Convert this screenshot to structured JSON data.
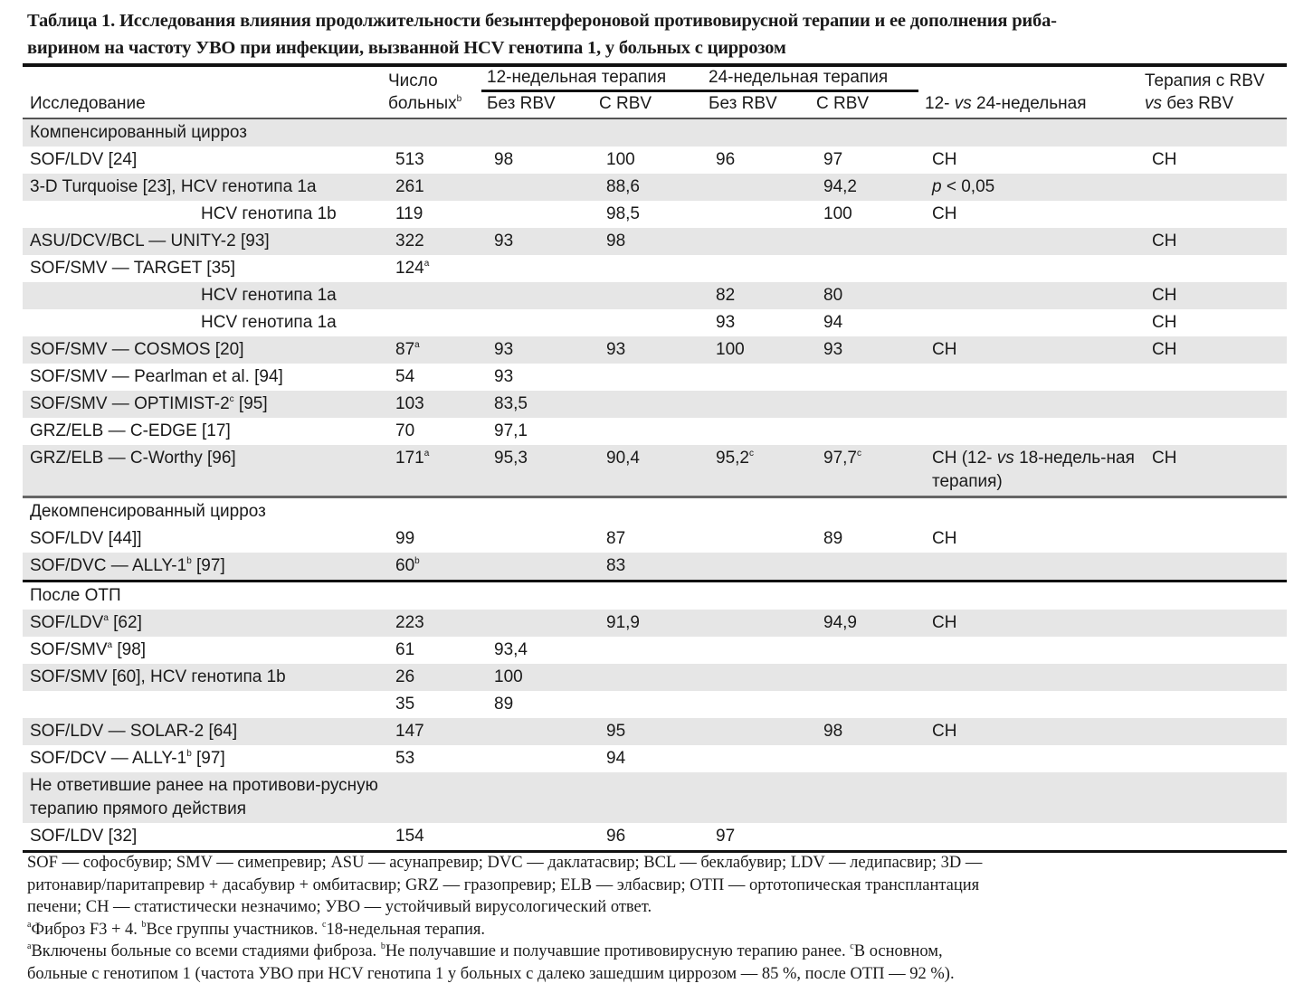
{
  "title": {
    "line1": "Таблица 1. Исследования влияния продолжительности безынтерфероновой противовирусной терапии и ее дополнения риба-",
    "line2": "вирином на частоту УВО при инфекции, вызванной HCV генотипа 1, у больных с циррозом"
  },
  "header": {
    "study": "Исследование",
    "count_l1": "Число",
    "count_l2": "больных",
    "count_sup": "b",
    "group12": "12-недельная терапия",
    "group24": "24-недельная терапия",
    "no_rbv_12": "Без RBV",
    "rbv_12": "С RBV",
    "no_rbv_24": "Без RBV",
    "rbv_24": "С RBV",
    "cmp_12": "12- ",
    "cmp_vs": "vs",
    "cmp_24": " 24-недельная",
    "rbv_l1": "Терапия с RBV",
    "rbv_vs": "vs",
    "rbv_l2": " без RBV"
  },
  "rows": [
    {
      "cls": "sh",
      "cells": [
        "Компенсированный цирроз"
      ]
    },
    {
      "cls": "",
      "cells": [
        "SOF/LDV [24]",
        "513",
        "98",
        "100",
        "96",
        "97",
        "СН",
        "СН"
      ]
    },
    {
      "cls": "sh",
      "cells": [
        "3-D Turquoise [23], HCV генотипа 1a",
        "261",
        "",
        "88,6",
        "",
        "94,2",
        [
          {
            "i": "p"
          },
          " < 0,05"
        ],
        ""
      ]
    },
    {
      "cls": "ind",
      "cells": [
        "HCV генотипа 1b",
        "119",
        "",
        "98,5",
        "",
        "100",
        "СН",
        ""
      ]
    },
    {
      "cls": "sh",
      "cells": [
        "ASU/DCV/BCL — UNITY-2 [93]",
        "322",
        "93",
        "98",
        "",
        "",
        "",
        "СН"
      ]
    },
    {
      "cls": "",
      "cells": [
        "SOF/SMV — TARGET [35]",
        [
          "124",
          {
            "sup": "a"
          }
        ],
        "",
        "",
        "",
        "",
        "",
        ""
      ]
    },
    {
      "cls": "sh ind",
      "cells": [
        "HCV генотипа 1a",
        "",
        "",
        "",
        "82",
        "80",
        "",
        "СН"
      ]
    },
    {
      "cls": "ind",
      "cells": [
        "HCV генотипа 1a",
        "",
        "",
        "",
        "93",
        "94",
        "",
        "СН"
      ]
    },
    {
      "cls": "sh",
      "cells": [
        "SOF/SMV — COSMOS [20]",
        [
          "87",
          {
            "sup": "a"
          }
        ],
        "93",
        "93",
        "100",
        "93",
        "СН",
        "СН"
      ]
    },
    {
      "cls": "",
      "cells": [
        "SOF/SMV — Pearlman et al. [94]",
        "54",
        "93",
        "",
        "",
        "",
        "",
        ""
      ]
    },
    {
      "cls": "sh",
      "cells": [
        [
          "SOF/SMV — OPTIMIST-2",
          {
            "sup": "c"
          },
          " [95]"
        ],
        "103",
        "83,5",
        "",
        "",
        "",
        "",
        ""
      ]
    },
    {
      "cls": "",
      "cells": [
        "GRZ/ELB — C-EDGE [17]",
        "70",
        "97,1",
        "",
        "",
        "",
        "",
        ""
      ]
    },
    {
      "cls": "sh wrap",
      "cells": [
        "GRZ/ELB — C-Worthy [96]",
        [
          "171",
          {
            "sup": "a"
          }
        ],
        "95,3",
        "90,4",
        [
          "95,2",
          {
            "sup": "c"
          }
        ],
        [
          "97,7",
          {
            "sup": "c"
          }
        ],
        [
          "СН (12- ",
          {
            "i": "vs"
          },
          " 18-недель-ная терапия)"
        ],
        "СН"
      ]
    },
    {
      "cls": "sep-grey",
      "cells": [
        "Декомпенсированный цирроз"
      ]
    },
    {
      "cls": "",
      "cells": [
        "SOF/LDV [44]]",
        "99",
        "",
        "87",
        "",
        "89",
        "СН",
        ""
      ]
    },
    {
      "cls": "sh",
      "cells": [
        [
          "SOF/DVC — ALLY-1",
          {
            "sup": "b"
          },
          " [97]"
        ],
        [
          "60",
          {
            "sup": "b"
          }
        ],
        "",
        "83",
        "",
        "",
        "",
        ""
      ]
    },
    {
      "cls": "sep-black",
      "cells": [
        "После ОТП"
      ]
    },
    {
      "cls": "sh",
      "cells": [
        [
          "SOF/LDV",
          {
            "sup": "a"
          },
          " [62]"
        ],
        "223",
        "",
        "91,9",
        "",
        "94,9",
        "СН",
        ""
      ]
    },
    {
      "cls": "",
      "cells": [
        [
          "SOF/SMV",
          {
            "sup": "a"
          },
          " [98]"
        ],
        "61",
        "93,4",
        "",
        "",
        "",
        "",
        ""
      ]
    },
    {
      "cls": "sh",
      "cells": [
        "SOF/SMV [60], HCV генотипа 1b",
        "26",
        "100",
        "",
        "",
        "",
        "",
        ""
      ]
    },
    {
      "cls": "",
      "cells": [
        "",
        "35",
        "89",
        "",
        "",
        "",
        "",
        ""
      ]
    },
    {
      "cls": "sh",
      "cells": [
        "SOF/LDV — SOLAR-2 [64]",
        "147",
        "",
        "95",
        "",
        "98",
        "СН",
        ""
      ]
    },
    {
      "cls": "",
      "cells": [
        [
          "SOF/DCV — ALLY-1",
          {
            "sup": "b"
          },
          " [97]"
        ],
        "53",
        "",
        "94",
        "",
        "",
        "",
        ""
      ]
    },
    {
      "cls": "sh wrap",
      "cells": [
        "Не ответившие ранее на противови-русную терапию прямого действия"
      ]
    },
    {
      "cls": "",
      "cells": [
        "SOF/LDV [32]",
        "154",
        "",
        "96",
        "97",
        "",
        "",
        ""
      ]
    }
  ],
  "notes": {
    "abbr_l1": "SOF — софосбувир; SMV — симепревир; ASU — асунапревир; DVC — даклатасвир; BCL — беклабувир; LDV — ледипасвир; 3D —",
    "abbr_l2": "ритонавир/паритапревир + дасабувир + омбитасвир; GRZ — гразопревир; ELB — элбасвир; ОТП — ортотопическая трансплантация",
    "abbr_l3": "печени; СН — статистически незначимо; УВО — устойчивый вирусологический ответ.",
    "n1": [
      {
        "sup": "a"
      },
      "Фиброз F3 + 4. ",
      {
        "sup": "b"
      },
      "Все группы участников. ",
      {
        "sup": "c"
      },
      "18-недельная терапия."
    ],
    "n2": [
      {
        "sup": "a"
      },
      "Включены больные со всеми стадиями фиброза. ",
      {
        "sup": "b"
      },
      "Не получавшие и получавшие противовирусную терапию ранее. ",
      {
        "sup": "c"
      },
      "В основном,"
    ],
    "n3": "больные с генотипом 1 (частота УВО при HCV генотипа 1 у больных с далеко зашедшим циррозом — 85 %, после ОТП — 92 %)."
  }
}
